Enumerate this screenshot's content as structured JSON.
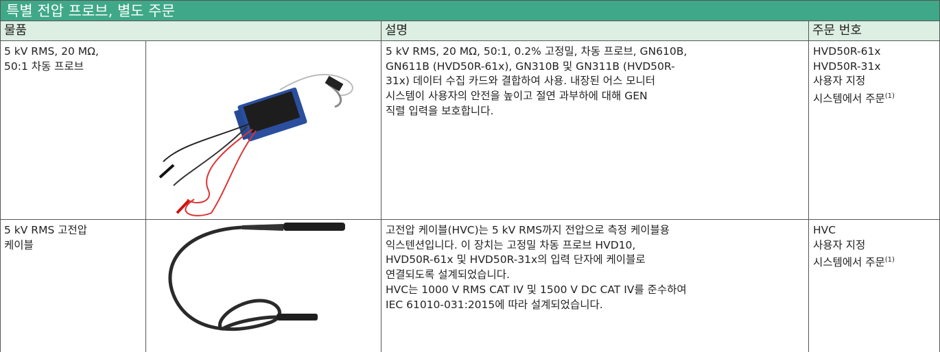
{
  "title": "특별 전압 프로브, 별도 주문",
  "header": [
    "물품",
    "설명",
    "주문 번호"
  ],
  "rows": [
    {
      "item": [
        "5 kV RMS, 20 MΩ,",
        "50:1 차동 프로브"
      ],
      "description": [
        "5 kV RMS, 20 MΩ, 50:1, 0.2% 고정밀, 차동 프로브, GN610B,",
        "GN611B (HVD50R-61x), GN310B 및 GN311B (HVD50R-",
        "31x) 데이터 수집 카드와 결합하여 사용. 내장된 어스 모니터",
        "시스템이 사용자의 안전을 높이고 절연 과부하에 대해 GEN",
        "직렬 입력을 보호합니다."
      ],
      "order": [
        "HVD50R-61x",
        "HVD50R-31x",
        "사용자 지정"
      ],
      "order_last": "시스템에서 주문",
      "order_note": "(1)"
    },
    {
      "item": [
        "5 kV RMS 고전압",
        "케이블"
      ],
      "description": [
        "고전압 케이블(HVC)는 5 kV RMS까지 전압으로 측정 케이블용",
        "익스텐션입니다. 이 장치는 고정밀 차동 프로브 HVD10,",
        "HVD50R-61x 및 HVD50R-31x의 입력 단자에 케이블로",
        "연결되도록 설계되었습니다.",
        "HVC는 1000 V RMS CAT IV 및 1500 V DC CAT IV를 준수하여",
        "IEC 61010-031:2015에 따라 설계되었습니다."
      ],
      "order": [
        "HVC",
        "사용자 지정"
      ],
      "order_last": "시스템에서 주문",
      "order_note": "(1)"
    }
  ]
}
